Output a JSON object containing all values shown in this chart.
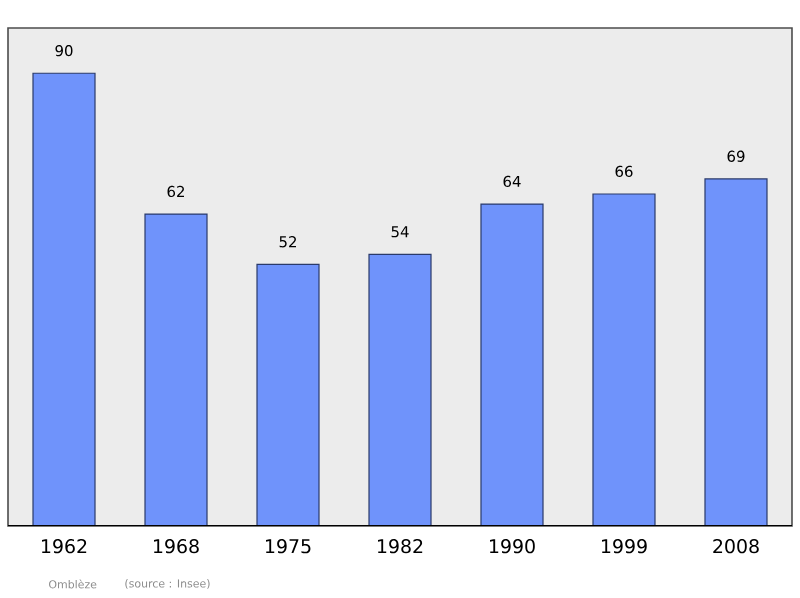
{
  "chart_data": {
    "type": "bar",
    "categories": [
      "1962",
      "1968",
      "1975",
      "1982",
      "1990",
      "1999",
      "2008"
    ],
    "values": [
      90,
      62,
      52,
      54,
      64,
      66,
      69
    ],
    "color": "#6f93fb",
    "data_labels": true,
    "annotations": [
      "Omblèze",
      "(source : Insee)"
    ]
  }
}
